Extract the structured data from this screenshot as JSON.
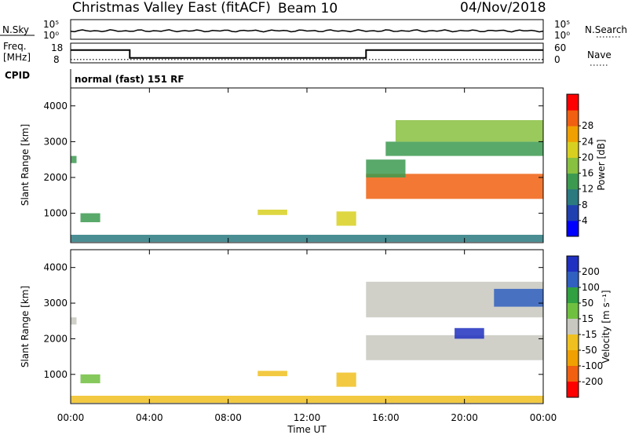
{
  "header": {
    "title": "Christmas Valley East (fitACF)",
    "beam": "Beam 10",
    "date": "04/Nov/2018"
  },
  "strip_panels": {
    "nsky": {
      "label": "N.Sky",
      "left_ticks": [
        "10^5",
        "10^0"
      ],
      "right_ticks": [
        "10^5",
        "10^0"
      ],
      "right_label": "N.Search",
      "level": 0.75
    },
    "freq": {
      "label_line1": "Freq.",
      "label_line2": "[MHz]",
      "left_ticks": [
        "18",
        "8"
      ],
      "right_ticks": [
        "60",
        "0"
      ],
      "right_label": "Nave",
      "freq_steps": [
        [
          0,
          14.5
        ],
        [
          3,
          10.5
        ],
        [
          15,
          14.5
        ],
        [
          24,
          14.5
        ]
      ],
      "nave": 10
    },
    "cpid": {
      "label": "CPID",
      "value": "normal (fast) 151 RF"
    }
  },
  "chart_data": [
    {
      "type": "heatmap",
      "name": "power",
      "xlabel": "",
      "ylabel": "Slant Range [km]",
      "xlim": [
        0,
        24
      ],
      "ylim": [
        180,
        4500
      ],
      "yticks": [
        "1000",
        "2000",
        "3000",
        "4000"
      ],
      "colorbar": {
        "label": "Power [dB]",
        "ticks": [
          "4",
          "8",
          "12",
          "16",
          "20",
          "24",
          "28"
        ],
        "colors": [
          "#0000ff",
          "#2040b0",
          "#2a7a80",
          "#3c9a50",
          "#88c040",
          "#d8d020",
          "#f0a000",
          "#f06010",
          "#ff0000"
        ]
      },
      "regions": [
        {
          "t0": 0.0,
          "t1": 24.0,
          "r0": 200,
          "r1": 400,
          "value": 10
        },
        {
          "t0": 0.5,
          "t1": 1.5,
          "r0": 750,
          "r1": 1000,
          "value": 12
        },
        {
          "t0": 9.5,
          "t1": 11.0,
          "r0": 950,
          "r1": 1100,
          "value": 18
        },
        {
          "t0": 13.5,
          "t1": 14.5,
          "r0": 650,
          "r1": 1050,
          "value": 18
        },
        {
          "t0": 15.0,
          "t1": 24.0,
          "r0": 1400,
          "r1": 2100,
          "value": 26
        },
        {
          "t0": 15.0,
          "t1": 17.0,
          "r0": 2000,
          "r1": 2500,
          "value": 14
        },
        {
          "t0": 16.0,
          "t1": 24.0,
          "r0": 2600,
          "r1": 3000,
          "value": 13
        },
        {
          "t0": 16.5,
          "t1": 24.0,
          "r0": 3000,
          "r1": 3600,
          "value": 16
        },
        {
          "t0": 0.0,
          "t1": 0.3,
          "r0": 2400,
          "r1": 2600,
          "value": 12
        }
      ]
    },
    {
      "type": "heatmap",
      "name": "velocity",
      "xlabel": "Time UT",
      "ylabel": "Slant Range [km]",
      "xlim": [
        0,
        24
      ],
      "ylim": [
        180,
        4500
      ],
      "xticks": [
        "00:00",
        "04:00",
        "08:00",
        "12:00",
        "16:00",
        "20:00",
        "00:00"
      ],
      "yticks": [
        "1000",
        "2000",
        "3000",
        "4000"
      ],
      "colorbar": {
        "label": "Velocity [m s^-1]",
        "ticks": [
          "200",
          "100",
          "50",
          "15",
          "-15",
          "-50",
          "-100",
          "-200"
        ],
        "colors": [
          "#2030c0",
          "#3060c0",
          "#30a040",
          "#70c040",
          "#c8c8c0",
          "#f0c020",
          "#f0a000",
          "#f06010",
          "#ff0000"
        ]
      },
      "regions": [
        {
          "t0": 0.0,
          "t1": 24.0,
          "r0": 200,
          "r1": 400,
          "value": -30
        },
        {
          "t0": 0.5,
          "t1": 1.5,
          "r0": 750,
          "r1": 1000,
          "value": 40
        },
        {
          "t0": 9.5,
          "t1": 11.0,
          "r0": 950,
          "r1": 1100,
          "value": -40
        },
        {
          "t0": 13.5,
          "t1": 14.5,
          "r0": 650,
          "r1": 1050,
          "value": -40
        },
        {
          "t0": 15.0,
          "t1": 24.0,
          "r0": 1400,
          "r1": 2100,
          "value": 0
        },
        {
          "t0": 15.0,
          "t1": 24.0,
          "r0": 2600,
          "r1": 3600,
          "value": 5
        },
        {
          "t0": 21.5,
          "t1": 24.0,
          "r0": 2900,
          "r1": 3400,
          "value": 180
        },
        {
          "t0": 19.5,
          "t1": 21.0,
          "r0": 2000,
          "r1": 2300,
          "value": 200
        },
        {
          "t0": 0.0,
          "t1": 0.3,
          "r0": 2400,
          "r1": 2600,
          "value": 0
        }
      ]
    }
  ]
}
